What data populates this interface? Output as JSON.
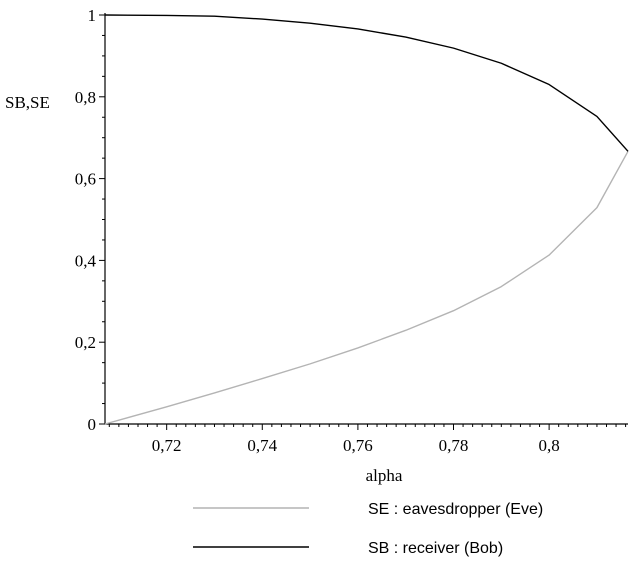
{
  "chart_data": {
    "type": "line",
    "xlabel": "alpha",
    "ylabel": "SB,SE",
    "xlim": [
      0.7071,
      0.8165
    ],
    "ylim": [
      0,
      1
    ],
    "x_ticks": [
      0.72,
      0.74,
      0.76,
      0.78,
      0.8
    ],
    "x_tick_labels": [
      "0,72",
      "0,74",
      "0,76",
      "0,78",
      "0,8"
    ],
    "y_ticks": [
      0,
      0.2,
      0.4,
      0.6,
      0.8,
      1
    ],
    "y_tick_labels": [
      "0",
      "0,2",
      "0,4",
      "0,6",
      "0,8",
      "1"
    ],
    "grid": false,
    "legend_position": "bottom",
    "series": [
      {
        "name": "SE : eavesdropper (Eve)",
        "color": "#b4b4b4",
        "points": [
          [
            0.7071,
            0.0
          ],
          [
            0.72,
            0.042
          ],
          [
            0.73,
            0.076
          ],
          [
            0.74,
            0.111
          ],
          [
            0.75,
            0.147
          ],
          [
            0.76,
            0.186
          ],
          [
            0.77,
            0.229
          ],
          [
            0.78,
            0.277
          ],
          [
            0.79,
            0.336
          ],
          [
            0.8,
            0.413
          ],
          [
            0.81,
            0.529
          ],
          [
            0.8165,
            0.6667
          ]
        ]
      },
      {
        "name": "SB : receiver (Bob)",
        "color": "#000000",
        "points": [
          [
            0.7071,
            1.0
          ],
          [
            0.72,
            0.999
          ],
          [
            0.73,
            0.997
          ],
          [
            0.74,
            0.99
          ],
          [
            0.75,
            0.98
          ],
          [
            0.76,
            0.966
          ],
          [
            0.77,
            0.946
          ],
          [
            0.78,
            0.919
          ],
          [
            0.79,
            0.882
          ],
          [
            0.8,
            0.83
          ],
          [
            0.81,
            0.752
          ],
          [
            0.8165,
            0.6667
          ]
        ]
      }
    ]
  }
}
